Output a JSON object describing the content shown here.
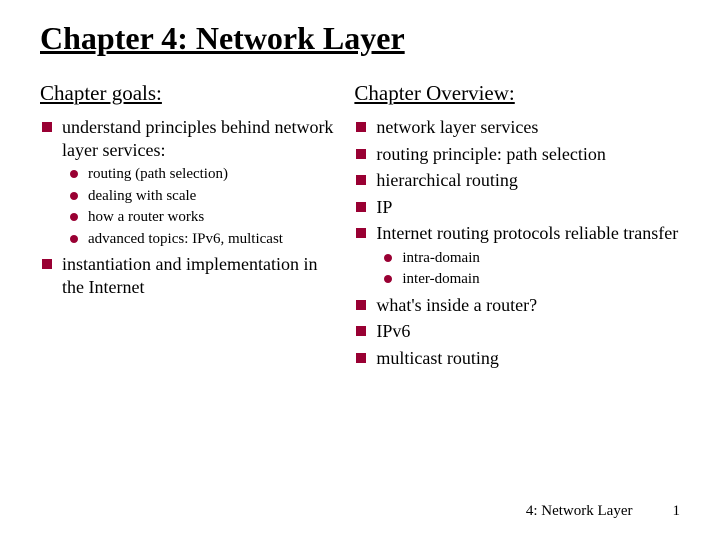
{
  "title": "Chapter 4: Network Layer",
  "left": {
    "heading": "Chapter goals:",
    "items": [
      {
        "text": "understand principles behind network layer services:",
        "sub": [
          "routing (path selection)",
          "dealing with scale",
          "how a router works",
          "advanced topics: IPv6, multicast"
        ]
      },
      {
        "text": "instantiation and implementation in the Internet",
        "sub": []
      }
    ]
  },
  "right": {
    "heading": "Chapter Overview:",
    "items": [
      {
        "text": "network layer services",
        "sub": []
      },
      {
        "text": "routing principle: path selection",
        "sub": []
      },
      {
        "text": "hierarchical routing",
        "sub": []
      },
      {
        "text": "IP",
        "sub": []
      },
      {
        "text": "Internet routing protocols reliable transfer",
        "sub": [
          "intra-domain",
          "inter-domain"
        ]
      },
      {
        "text": "what's inside a router?",
        "sub": []
      },
      {
        "text": "IPv6",
        "sub": []
      },
      {
        "text": "multicast routing",
        "sub": []
      }
    ]
  },
  "footer": {
    "label": "4: Network Layer",
    "page": "1"
  },
  "colors": {
    "bullet_square": "#990033",
    "bullet_circle": "#990033",
    "text": "#000000",
    "background": "#ffffff"
  },
  "typography": {
    "title_size": 32,
    "heading_size": 21,
    "body_size": 18,
    "sub_size": 15,
    "footer_size": 15,
    "font_family": "Comic Sans MS"
  }
}
